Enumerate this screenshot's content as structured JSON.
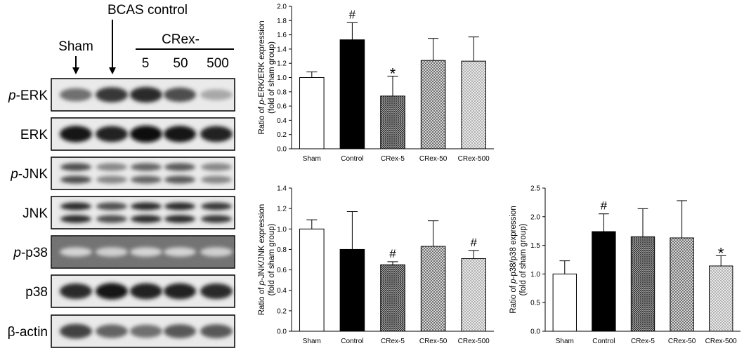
{
  "blot": {
    "header": {
      "sham": "Sham",
      "bcas": "BCAS control",
      "crex": "CRex-",
      "doses": [
        "5",
        "50",
        "500"
      ]
    },
    "rows": [
      {
        "prefix": "p",
        "label": "-ERK",
        "intensity": [
          0.55,
          0.8,
          0.85,
          0.7,
          0.3
        ],
        "bands": 1
      },
      {
        "prefix": "",
        "label": "ERK",
        "intensity": [
          0.95,
          0.9,
          1.0,
          0.95,
          0.9
        ],
        "bands": 1
      },
      {
        "prefix": "p",
        "label": "-JNK",
        "intensity": [
          0.7,
          0.45,
          0.6,
          0.65,
          0.45
        ],
        "bands": 2
      },
      {
        "prefix": "",
        "label": "JNK",
        "intensity": [
          0.85,
          0.7,
          0.85,
          0.85,
          0.8
        ],
        "bands": 2
      },
      {
        "prefix": "p",
        "label": "-p38",
        "intensity": [
          0.1,
          0.12,
          0.1,
          0.1,
          0.12
        ],
        "bands": 1
      },
      {
        "prefix": "",
        "label": "p38",
        "intensity": [
          0.85,
          0.95,
          0.9,
          0.9,
          0.85
        ],
        "bands": 1
      },
      {
        "prefix": "",
        "label": "β-actin",
        "intensity": [
          0.75,
          0.6,
          0.55,
          0.65,
          0.65
        ],
        "bands": 1
      }
    ]
  },
  "chart_data": [
    {
      "type": "bar",
      "categories": [
        "Sham",
        "Control",
        "CRex-5",
        "CRex-50",
        "CRex-500"
      ],
      "values": [
        1.0,
        1.53,
        0.74,
        1.24,
        1.23
      ],
      "errors": [
        0.08,
        0.24,
        0.28,
        0.31,
        0.34
      ],
      "markers": [
        "",
        "#",
        "*",
        "",
        ""
      ],
      "ylabel_parts": [
        [
          "Ratio of ",
          false
        ],
        [
          "p",
          true
        ],
        [
          "-ERK/ERK expression",
          false
        ]
      ],
      "ylabel2": "(fold of sham group)",
      "ylim": [
        0,
        2.0
      ],
      "yticks": [
        "0.0",
        "0.2",
        "0.4",
        "0.6",
        "0.8",
        "1.0",
        "1.2",
        "1.4",
        "1.6",
        "1.8",
        "2.0"
      ]
    },
    {
      "type": "bar",
      "categories": [
        "Sham",
        "Control",
        "CRex-5",
        "CRex-50",
        "CRex-500"
      ],
      "values": [
        1.0,
        0.8,
        0.65,
        0.83,
        0.71
      ],
      "errors": [
        0.09,
        0.37,
        0.03,
        0.25,
        0.08
      ],
      "markers": [
        "",
        "",
        "#",
        "",
        "#"
      ],
      "ylabel_parts": [
        [
          "Ratio of ",
          false
        ],
        [
          "p",
          true
        ],
        [
          "-JNK/JNK expression",
          false
        ]
      ],
      "ylabel2": "(fold of sham group)",
      "ylim": [
        0,
        1.4
      ],
      "yticks": [
        "0.0",
        "0.2",
        "0.4",
        "0.6",
        "0.8",
        "1.0",
        "1.2",
        "1.4"
      ]
    },
    {
      "type": "bar",
      "categories": [
        "Sham",
        "Control",
        "CRex-5",
        "CRex-50",
        "CRex-500"
      ],
      "values": [
        1.0,
        1.74,
        1.65,
        1.63,
        1.14
      ],
      "errors": [
        0.23,
        0.31,
        0.49,
        0.65,
        0.18
      ],
      "markers": [
        "",
        "#",
        "",
        "",
        "*"
      ],
      "ylabel_parts": [
        [
          "Ratio of ",
          false
        ],
        [
          "p",
          true
        ],
        [
          "-p38/p38 expression",
          false
        ]
      ],
      "ylabel2": "(fold of sham group)",
      "ylim": [
        0,
        2.5
      ],
      "yticks": [
        "0.0",
        "0.5",
        "1.0",
        "1.5",
        "2.0",
        "2.5"
      ]
    }
  ]
}
